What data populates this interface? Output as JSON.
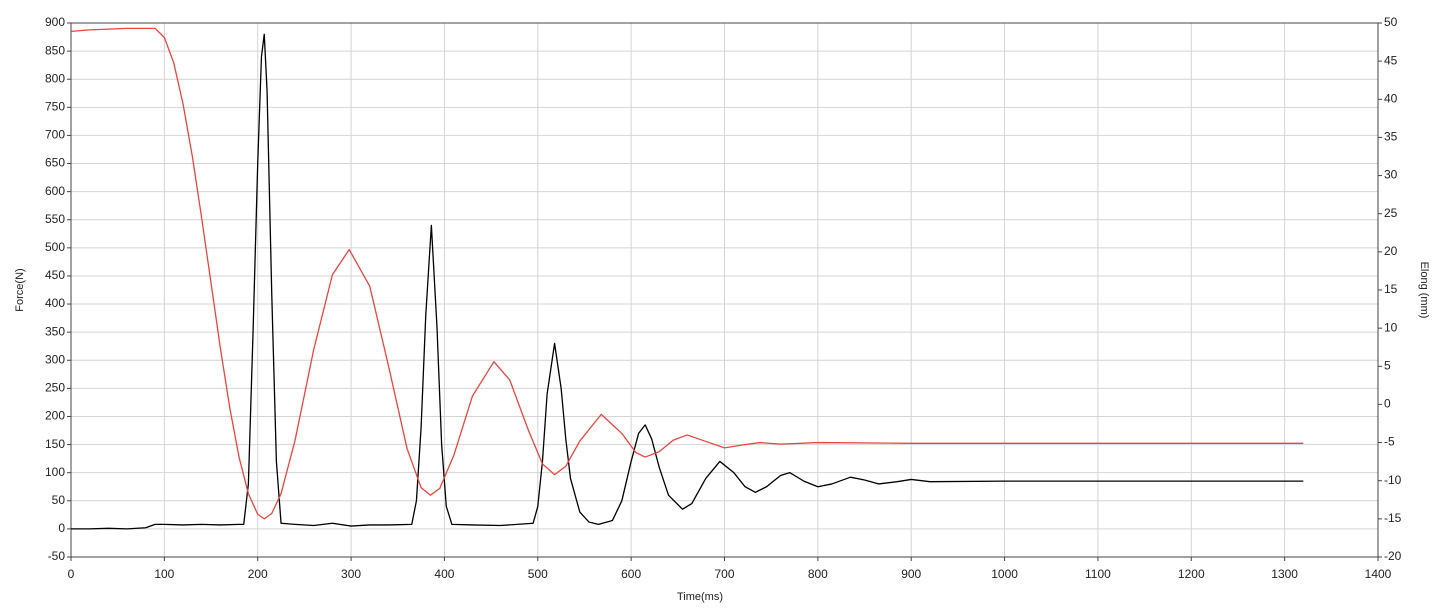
{
  "chart_data": {
    "type": "line",
    "x_label": "Time(ms)",
    "y_label": "Force(N)",
    "y2_label": "Elong (mm)",
    "xlim": [
      0,
      1400
    ],
    "xticks": [
      0,
      100,
      200,
      300,
      400,
      500,
      600,
      700,
      800,
      900,
      1000,
      1100,
      1200,
      1300,
      1400
    ],
    "ylim": [
      -50,
      900
    ],
    "yticks": [
      -50,
      0,
      50,
      100,
      150,
      200,
      250,
      300,
      350,
      400,
      450,
      500,
      550,
      600,
      650,
      700,
      750,
      800,
      850,
      900
    ],
    "y2lim": [
      -20,
      50
    ],
    "y2ticks": [
      -20,
      -15,
      -10,
      -5,
      0,
      5,
      10,
      15,
      20,
      25,
      30,
      35,
      40,
      45,
      50
    ],
    "grid": true,
    "series": [
      {
        "color": "#000000",
        "x": [
          0,
          20,
          40,
          60,
          80,
          90,
          100,
          120,
          140,
          160,
          180,
          185,
          190,
          195,
          200,
          204,
          207,
          210,
          215,
          220,
          225,
          240,
          260,
          280,
          300,
          320,
          340,
          365,
          370,
          375,
          380,
          386,
          392,
          397,
          402,
          408,
          430,
          460,
          495,
          500,
          505,
          510,
          518,
          525,
          530,
          535,
          545,
          555,
          565,
          580,
          590,
          600,
          608,
          615,
          622,
          630,
          640,
          655,
          665,
          680,
          695,
          710,
          722,
          733,
          745,
          760,
          770,
          785,
          800,
          815,
          835,
          850,
          865,
          885,
          900,
          920,
          1000,
          1100,
          1200,
          1320
        ],
        "values": [
          0,
          0,
          1,
          0,
          2,
          8,
          8,
          7,
          8,
          7,
          8,
          8,
          80,
          350,
          650,
          840,
          880,
          780,
          420,
          120,
          10,
          8,
          6,
          10,
          5,
          7,
          7,
          8,
          50,
          180,
          380,
          540,
          360,
          150,
          40,
          8,
          7,
          6,
          10,
          40,
          120,
          240,
          330,
          250,
          160,
          90,
          30,
          12,
          8,
          15,
          50,
          120,
          170,
          185,
          160,
          110,
          60,
          35,
          45,
          90,
          120,
          100,
          75,
          65,
          75,
          95,
          100,
          85,
          75,
          80,
          92,
          87,
          80,
          84,
          88,
          84,
          85,
          85,
          85,
          85
        ]
      },
      {
        "color": "#e8463f",
        "axis": "y2",
        "x": [
          0,
          20,
          40,
          60,
          80,
          90,
          100,
          110,
          120,
          130,
          140,
          150,
          160,
          170,
          180,
          190,
          200,
          207,
          215,
          225,
          240,
          260,
          280,
          298,
          320,
          340,
          360,
          375,
          385,
          395,
          410,
          430,
          453,
          470,
          490,
          505,
          518,
          530,
          545,
          568,
          590,
          605,
          615,
          630,
          645,
          660,
          680,
          700,
          720,
          738,
          760,
          800,
          900,
          1000,
          1100,
          1200,
          1320
        ],
        "values": [
          48.9,
          49.1,
          49.2,
          49.3,
          49.3,
          49.3,
          48.1,
          44.8,
          39.4,
          32.5,
          24.4,
          15.9,
          7.4,
          -0.4,
          -6.9,
          -11.7,
          -14.4,
          -15.0,
          -14.3,
          -11.7,
          -4.7,
          7.2,
          17.0,
          20.3,
          15.5,
          5.1,
          -5.8,
          -10.9,
          -11.9,
          -11.0,
          -6.7,
          1.1,
          5.6,
          3.2,
          -3.4,
          -7.8,
          -9.2,
          -8.1,
          -4.8,
          -1.3,
          -3.8,
          -6.3,
          -6.9,
          -6.2,
          -4.7,
          -4.0,
          -4.85,
          -5.7,
          -5.3,
          -5.0,
          -5.2,
          -5.0,
          -5.1,
          -5.1,
          -5.1,
          -5.1,
          -5.1
        ]
      }
    ]
  }
}
